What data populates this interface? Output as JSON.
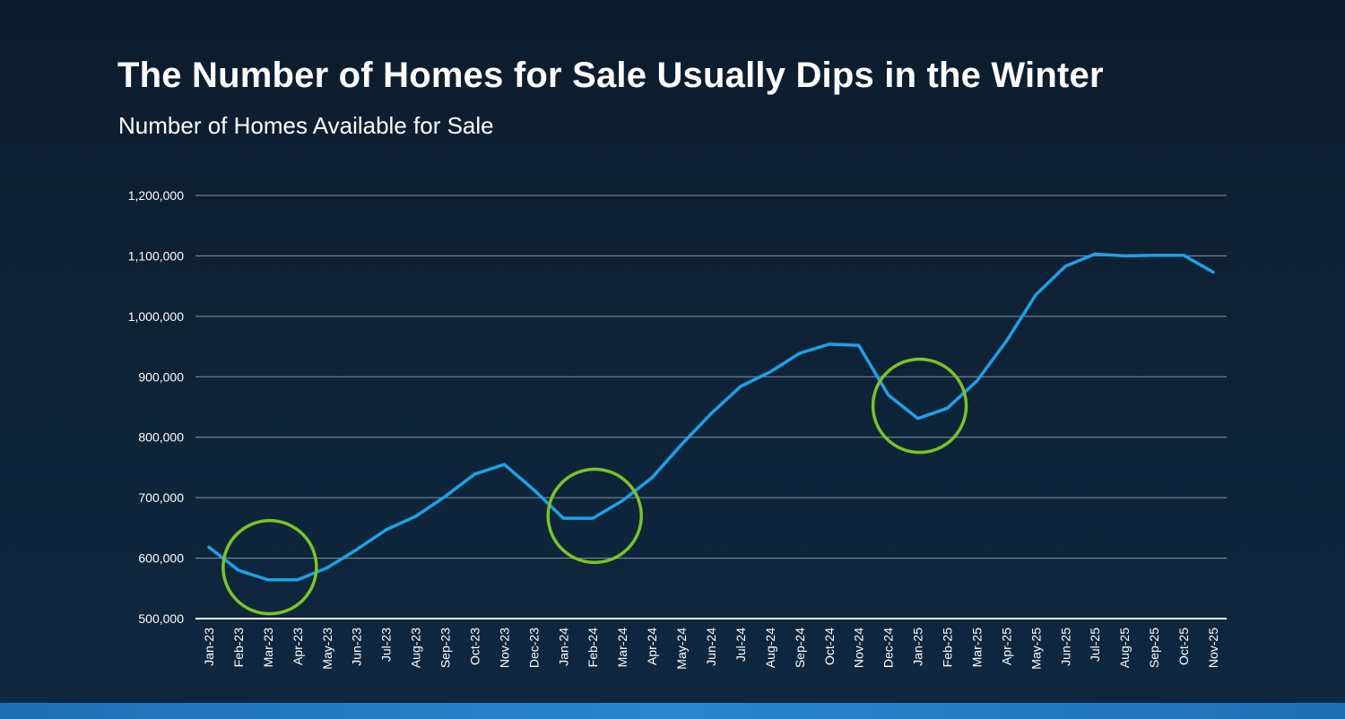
{
  "title": "The Number of Homes for Sale Usually Dips in the Winter",
  "subtitle": "Number of Homes Available for Sale",
  "colors": {
    "line": "#1aa3e8",
    "highlight_circle": "#7cc423",
    "grid": "#8a97a6",
    "axis": "#ffffff",
    "text": "#ffffff"
  },
  "chart_data": {
    "type": "line",
    "title": "The Number of Homes for Sale Usually Dips in the Winter",
    "subtitle": "Number of Homes Available for Sale",
    "xlabel": "",
    "ylabel": "",
    "ylim": [
      500000,
      1200000
    ],
    "yticks": [
      500000,
      600000,
      700000,
      800000,
      900000,
      1000000,
      1100000,
      1200000
    ],
    "ytick_labels": [
      "500,000",
      "600,000",
      "700,000",
      "800,000",
      "900,000",
      "1,000,000",
      "1,100,000",
      "1,200,000"
    ],
    "grid": true,
    "categories": [
      "Jan-23",
      "Feb-23",
      "Mar-23",
      "Apr-23",
      "May-23",
      "Jun-23",
      "Jul-23",
      "Aug-23",
      "Sep-23",
      "Oct-23",
      "Nov-23",
      "Dec-23",
      "Jan-24",
      "Feb-24",
      "Mar-24",
      "Apr-24",
      "May-24",
      "Jun-24",
      "Jul-24",
      "Aug-24",
      "Sep-24",
      "Oct-24",
      "Nov-24",
      "Dec-24",
      "Jan-25",
      "Feb-25",
      "Mar-25",
      "Apr-25",
      "May-25",
      "Jun-25",
      "Jul-25",
      "Aug-25",
      "Sep-25",
      "Oct-25",
      "Nov-25"
    ],
    "series": [
      {
        "name": "Number of Homes Available for Sale",
        "values": [
          618000,
          580000,
          564000,
          564000,
          584000,
          614000,
          647000,
          669000,
          702000,
          739000,
          755000,
          713000,
          666000,
          666000,
          695000,
          733000,
          788000,
          839000,
          884000,
          908000,
          939000,
          954000,
          952000,
          870000,
          831000,
          848000,
          893000,
          959000,
          1036000,
          1083000,
          1103000,
          1100000,
          1101000,
          1101000,
          1073000
        ]
      }
    ],
    "annotations": [
      {
        "type": "circle",
        "label": "winter-dip-2023",
        "center_category": "Mar-23",
        "center_value": 585000
      },
      {
        "type": "circle",
        "label": "winter-dip-2024",
        "center_category": "Feb-24",
        "center_value": 670000
      },
      {
        "type": "circle",
        "label": "winter-dip-2025",
        "center_category": "Jan-25",
        "center_value": 852000
      }
    ]
  }
}
